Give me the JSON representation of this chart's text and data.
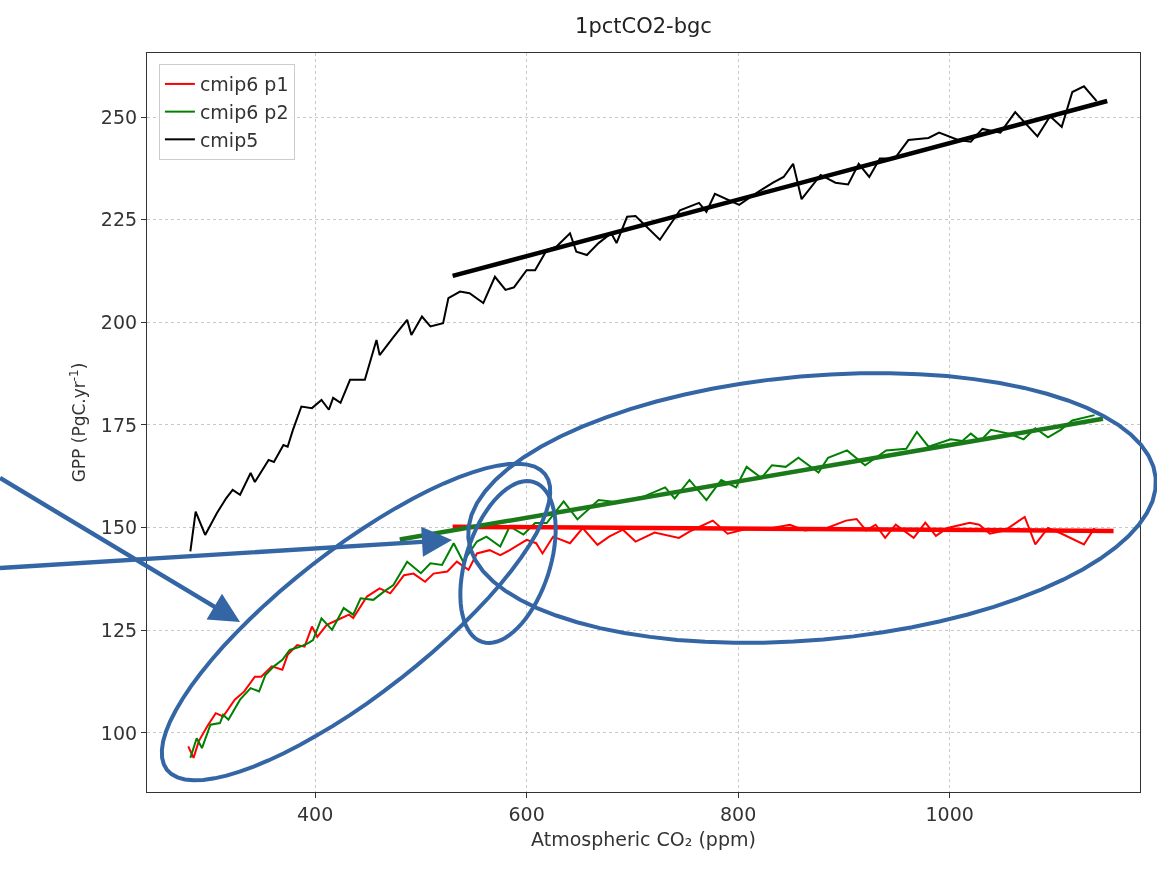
{
  "chart_data": {
    "type": "line",
    "title": "1pctCO2-bgc",
    "xlabel": "Atmospheric CO₂ (ppm)",
    "ylabel": "GPP (PgC.yr$^{-1}$)",
    "xlim": [
      241,
      1180
    ],
    "ylim": [
      85.6,
      265.6
    ],
    "xticks": [
      400,
      600,
      800,
      1000
    ],
    "yticks": [
      100,
      125,
      150,
      175,
      200,
      225,
      250
    ],
    "grid": true,
    "legend": "top left",
    "line_style": "solid",
    "marker": "none",
    "series": [
      {
        "name": "cmip6 p1",
        "color": "#ff0000",
        "x": [
          280,
          285,
          290,
          298,
          306,
          313,
          324,
          333,
          343,
          349,
          359,
          369,
          374,
          383,
          390,
          397,
          402,
          411,
          421,
          432,
          436,
          449,
          461,
          471,
          477,
          484,
          493,
          504,
          512,
          525,
          534,
          545,
          553,
          565,
          575,
          584,
          600,
          609,
          615,
          625,
          641,
          653,
          667,
          678,
          691,
          703,
          721,
          744,
          756,
          776,
          790,
          811,
          832,
          849,
          863,
          884,
          902,
          912,
          921,
          930,
          939,
          949,
          966,
          977,
          987,
          998,
          1019,
          1028,
          1038,
          1052,
          1071,
          1081,
          1093,
          1106,
          1127,
          1137
        ],
        "values": [
          96.7,
          93.9,
          98,
          101.6,
          104.8,
          104,
          108.1,
          110.1,
          113.7,
          113.7,
          116.2,
          115.4,
          119,
          121.4,
          121,
          125.9,
          123.4,
          126.3,
          127.5,
          128.8,
          128,
          133.2,
          135.2,
          134,
          136,
          138.4,
          138.8,
          136.8,
          138.8,
          139.3,
          141.7,
          139.7,
          143.7,
          144.5,
          143.3,
          144.5,
          147,
          146.2,
          143.7,
          147.8,
          146.2,
          149.9,
          145.8,
          147.8,
          149.5,
          146.6,
          148.8,
          147.5,
          149.3,
          151.7,
          148.5,
          149.9,
          149.9,
          150.7,
          149.3,
          149.9,
          151.7,
          152.1,
          149.3,
          150.7,
          147.5,
          150.7,
          147.5,
          151.2,
          148,
          149.9,
          151.2,
          150.7,
          148.5,
          149.3,
          152.6,
          145.9,
          149.9,
          148.5,
          145.9,
          149.9
        ]
      },
      {
        "name": "cmip6 p2",
        "color": "#008000",
        "x": [
          282,
          288,
          293,
          301,
          310,
          313,
          318,
          329,
          339,
          347,
          353,
          361,
          369,
          376,
          386,
          393,
          398,
          406,
          416,
          427,
          436,
          443,
          455,
          465,
          474,
          487,
          500,
          509,
          520,
          531,
          540,
          553,
          562,
          575,
          584,
          597,
          608,
          619,
          635,
          648,
          668,
          686,
          710,
          731,
          740,
          754,
          770,
          784,
          798,
          808,
          822,
          832,
          845,
          857,
          876,
          885,
          903,
          920,
          940,
          959,
          969,
          980,
          1001,
          1012,
          1020,
          1029,
          1039,
          1056,
          1070,
          1081,
          1093,
          1105,
          1116,
          1137
        ],
        "values": [
          93.9,
          98.7,
          96.3,
          102,
          102.4,
          104.4,
          103.2,
          108.1,
          110.9,
          110.1,
          114.1,
          116.2,
          117.8,
          120.2,
          121,
          121.8,
          122.6,
          127.9,
          125.1,
          130.4,
          128.8,
          132.8,
          132.4,
          134.4,
          136,
          141.7,
          138.9,
          141.3,
          140.9,
          146.2,
          141.7,
          146.6,
          147.8,
          145.4,
          150.3,
          148.3,
          151.1,
          151.1,
          156.4,
          152,
          156.7,
          156.2,
          157.5,
          159.8,
          157.1,
          161.6,
          156.7,
          161.6,
          159.8,
          164.8,
          162.1,
          165.2,
          164.8,
          167,
          163.4,
          167,
          168.8,
          165.2,
          168.8,
          169.2,
          173.3,
          169.7,
          171.5,
          171.1,
          172.9,
          171.1,
          173.8,
          172.9,
          171.5,
          174.2,
          172,
          173.8,
          176.1,
          177.4
        ]
      },
      {
        "name": "cmip5",
        "color": "#000000",
        "x": [
          282,
          287,
          296,
          307,
          316,
          322,
          329,
          339,
          343,
          356,
          361,
          370,
          374,
          379,
          387,
          397,
          406,
          413,
          417,
          424,
          433,
          447,
          458,
          461,
          474,
          487,
          491,
          501,
          509,
          521,
          526,
          537,
          546,
          559,
          570,
          580,
          588,
          600,
          608,
          619,
          628,
          641,
          647,
          657,
          668,
          680,
          685,
          695,
          703,
          726,
          745,
          763,
          770,
          778,
          801,
          819,
          833,
          843,
          852,
          860,
          878,
          892,
          904,
          914,
          924,
          934,
          948,
          961,
          980,
          990,
          1008,
          1020,
          1031,
          1048,
          1062,
          1083,
          1095,
          1106,
          1116,
          1127,
          1139
        ],
        "values": [
          144.2,
          153.9,
          148.2,
          153.5,
          157.2,
          159.2,
          158,
          163.3,
          161.1,
          166.5,
          166,
          170.1,
          169.7,
          173.8,
          179.5,
          179.1,
          181.1,
          178.7,
          181.6,
          180.4,
          186,
          186,
          195.7,
          192,
          196.4,
          200.6,
          196.9,
          201.4,
          199,
          199.8,
          205.9,
          207.5,
          207.1,
          204.7,
          211.1,
          207.9,
          208.5,
          212.7,
          212.7,
          217.6,
          218.4,
          221.7,
          217.2,
          216.4,
          219.3,
          221.7,
          219.3,
          225.7,
          225.9,
          220.1,
          227.3,
          229.1,
          226.9,
          231.3,
          228.6,
          231.8,
          234,
          235.4,
          238.6,
          230,
          235.9,
          234,
          233.6,
          238.6,
          235.4,
          239.9,
          239.9,
          244.4,
          244.9,
          246.2,
          244.4,
          244,
          247.1,
          246.2,
          251.2,
          245.3,
          250.2,
          247.6,
          256.1,
          257.5,
          253.9
        ]
      },
      {
        "color": "#000000",
        "x": [
          530,
          1149
        ],
        "values": [
          211.3,
          253.9
        ]
      },
      {
        "color": "#ff0000",
        "x": [
          530,
          1155
        ],
        "values": [
          150.2,
          149.2
        ]
      },
      {
        "color": "#1a7a1a",
        "x": [
          480,
          1145
        ],
        "values": [
          147.1,
          176.5
        ]
      }
    ]
  }
}
